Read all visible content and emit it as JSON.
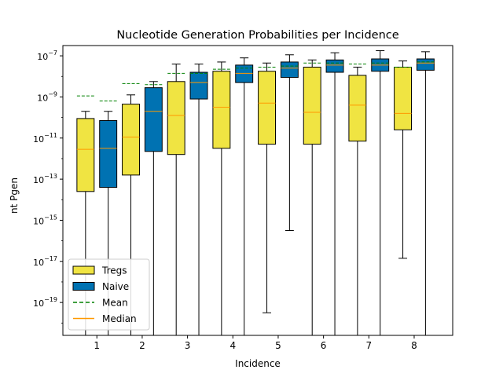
{
  "chart_data": {
    "type": "box",
    "title": "Nucleotide Generation Probabilities per Incidence",
    "xlabel": "Incidence",
    "ylabel": "nt Pgen",
    "y_scale": "log",
    "ylim_exp": [
      -20.6,
      -6.5
    ],
    "xlim": [
      0.25,
      8.85
    ],
    "y_ticks": [
      {
        "exp": -7,
        "label_base": "10",
        "label_exp": "−7"
      },
      {
        "exp": -9,
        "label_base": "10",
        "label_exp": "−9"
      },
      {
        "exp": -11,
        "label_base": "10",
        "label_exp": "−11"
      },
      {
        "exp": -13,
        "label_base": "10",
        "label_exp": "−13"
      },
      {
        "exp": -15,
        "label_base": "10",
        "label_exp": "−15"
      },
      {
        "exp": -17,
        "label_base": "10",
        "label_exp": "−17"
      },
      {
        "exp": -19,
        "label_base": "10",
        "label_exp": "−19"
      }
    ],
    "x_ticks": [
      {
        "value": 1,
        "label": "1"
      },
      {
        "value": 2,
        "label": "2"
      },
      {
        "value": 3,
        "label": "3"
      },
      {
        "value": 4,
        "label": "4"
      },
      {
        "value": 5,
        "label": "5"
      },
      {
        "value": 6,
        "label": "6"
      },
      {
        "value": 7,
        "label": "7"
      },
      {
        "value": 8,
        "label": "8"
      }
    ],
    "series": [
      {
        "name": "Tregs",
        "color": "#f0e442",
        "offset": -0.25,
        "boxes": [
          {
            "x": 1,
            "whislo": -21,
            "q1": -13.6,
            "median": -11.55,
            "q3": -10.05,
            "whishi": -9.7,
            "mean": -8.95
          },
          {
            "x": 2,
            "whislo": -21,
            "q1": -12.8,
            "median": -10.95,
            "q3": -9.35,
            "whishi": -8.9,
            "mean": -8.35
          },
          {
            "x": 3,
            "whislo": -21,
            "q1": -11.8,
            "median": -9.9,
            "q3": -8.25,
            "whishi": -7.4,
            "mean": -7.85
          },
          {
            "x": 4,
            "whislo": -21,
            "q1": -11.5,
            "median": -9.5,
            "q3": -7.75,
            "whishi": -7.3,
            "mean": -7.65
          },
          {
            "x": 5,
            "whislo": -19.5,
            "q1": -11.3,
            "median": -9.3,
            "q3": -7.75,
            "whishi": -7.35,
            "mean": -7.55
          },
          {
            "x": 6,
            "whislo": -21,
            "q1": -11.3,
            "median": -9.75,
            "q3": -7.55,
            "whishi": -7.2,
            "mean": -7.35
          },
          {
            "x": 7,
            "whislo": -21,
            "q1": -11.15,
            "median": -9.4,
            "q3": -7.95,
            "whishi": -7.55,
            "mean": -7.4
          },
          {
            "x": 8,
            "whislo": -16.85,
            "q1": -10.6,
            "median": -9.8,
            "q3": -7.55,
            "whishi": -7.25,
            "mean": -7.55
          }
        ]
      },
      {
        "name": "Naive",
        "color": "#0072b2",
        "offset": 0.25,
        "boxes": [
          {
            "x": 1,
            "whislo": -21,
            "q1": -13.4,
            "median": -11.5,
            "q3": -10.15,
            "whishi": -9.7,
            "mean": -9.2
          },
          {
            "x": 2,
            "whislo": -21,
            "q1": -11.65,
            "median": -9.7,
            "q3": -8.55,
            "whishi": -8.25,
            "mean": -8.4
          },
          {
            "x": 3,
            "whislo": -21,
            "q1": -9.1,
            "median": -8.3,
            "q3": -7.8,
            "whishi": -7.4,
            "mean": -7.85
          },
          {
            "x": 4,
            "whislo": -21,
            "q1": -8.3,
            "median": -7.85,
            "q3": -7.45,
            "whishi": -7.1,
            "mean": -7.6
          },
          {
            "x": 5,
            "whislo": -15.5,
            "q1": -8.05,
            "median": -7.6,
            "q3": -7.3,
            "whishi": -6.95,
            "mean": -7.5
          },
          {
            "x": 6,
            "whislo": -21,
            "q1": -7.8,
            "median": -7.45,
            "q3": -7.2,
            "whishi": -6.85,
            "mean": -7.35
          },
          {
            "x": 7,
            "whislo": -21,
            "q1": -7.75,
            "median": -7.45,
            "q3": -7.15,
            "whishi": -6.75,
            "mean": -7.35
          },
          {
            "x": 8,
            "whislo": -21,
            "q1": -7.7,
            "median": -7.35,
            "q3": -7.15,
            "whishi": -6.8,
            "mean": -7.3
          }
        ]
      }
    ],
    "mean_color": "#008000",
    "median_color": "#ff9900",
    "legend": {
      "placement": "lower-left",
      "entries": [
        {
          "label": "Tregs",
          "kind": "box",
          "color": "#f0e442"
        },
        {
          "label": "Naive",
          "kind": "box",
          "color": "#0072b2"
        },
        {
          "label": "Mean",
          "kind": "dashed-line",
          "color": "#008000"
        },
        {
          "label": "Median",
          "kind": "line",
          "color": "#ff9900"
        }
      ]
    },
    "grid": false
  }
}
